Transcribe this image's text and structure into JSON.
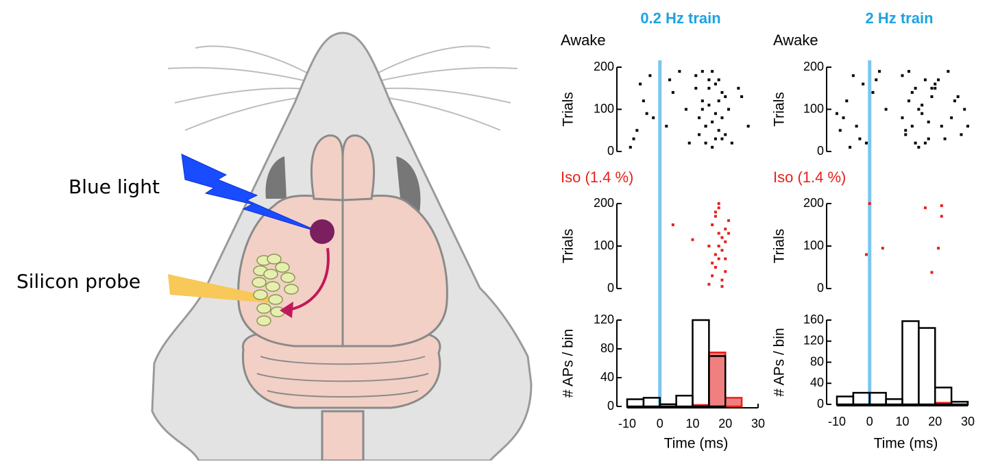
{
  "diagram": {
    "labels": [
      "Blue light",
      "Silicon probe"
    ]
  },
  "chart_data": [
    {
      "type": "scatter",
      "title": "0.2 Hz train",
      "subtitle": "Awake",
      "subtitle_color": "#000000",
      "ylabel": "Trials",
      "color": "#000000",
      "vline": {
        "value": 0,
        "color": "#7cc6ee"
      },
      "xlim": [
        -10,
        30
      ],
      "ylim": [
        0,
        200
      ],
      "yticks": [
        0,
        100,
        200
      ],
      "x": [
        -7,
        -5,
        -3,
        -8,
        -2,
        -6,
        -9,
        2,
        4,
        6,
        8,
        9,
        3,
        -4,
        11,
        12,
        13,
        14,
        15,
        16,
        17,
        18,
        19,
        20,
        12,
        13,
        14,
        15,
        16,
        17,
        18,
        19,
        21,
        22,
        11,
        14,
        16,
        18,
        20,
        13,
        15,
        17,
        19,
        25,
        27,
        24
      ],
      "values": [
        50,
        120,
        180,
        30,
        80,
        160,
        10,
        60,
        140,
        190,
        100,
        20,
        170,
        90,
        180,
        40,
        120,
        60,
        150,
        10,
        90,
        170,
        30,
        130,
        80,
        190,
        20,
        110,
        70,
        160,
        50,
        140,
        100,
        20,
        150,
        60,
        190,
        120,
        40,
        100,
        170,
        30,
        80,
        130,
        60,
        150
      ]
    },
    {
      "type": "scatter",
      "title": "2 Hz train",
      "subtitle": "Awake",
      "subtitle_color": "#000000",
      "ylabel": "Trials",
      "color": "#000000",
      "vline": {
        "value": 0,
        "color": "#7cc6ee"
      },
      "xlim": [
        -10,
        30
      ],
      "ylim": [
        0,
        200
      ],
      "yticks": [
        0,
        100,
        200
      ],
      "x": [
        -9,
        -7,
        -5,
        -3,
        -8,
        -2,
        -6,
        -4,
        1,
        3,
        5,
        -1,
        2,
        -10,
        10,
        11,
        12,
        13,
        14,
        15,
        16,
        17,
        18,
        19,
        10,
        12,
        14,
        16,
        18,
        20,
        11,
        13,
        15,
        17,
        20,
        22,
        24,
        26,
        28,
        29,
        21,
        23,
        25,
        27,
        30,
        19
      ],
      "values": [
        50,
        120,
        180,
        30,
        80,
        160,
        10,
        60,
        140,
        190,
        100,
        20,
        170,
        90,
        180,
        40,
        120,
        60,
        150,
        10,
        90,
        170,
        30,
        130,
        80,
        190,
        20,
        110,
        70,
        160,
        50,
        140,
        100,
        20,
        150,
        60,
        190,
        120,
        40,
        100,
        170,
        30,
        80,
        130,
        60,
        150
      ]
    },
    {
      "type": "scatter",
      "subtitle": "Iso (1.4 %)",
      "subtitle_color": "#e8201a",
      "ylabel": "Trials",
      "color": "#e8201a",
      "vline": {
        "value": 0,
        "color": "#7cc6ee"
      },
      "xlim": [
        -10,
        30
      ],
      "ylim": [
        0,
        200
      ],
      "yticks": [
        0,
        100,
        200
      ],
      "x": [
        4,
        10,
        15,
        16,
        17,
        18,
        19,
        20,
        21,
        16,
        17,
        18,
        19,
        20,
        16,
        17,
        18,
        19,
        20,
        21,
        17,
        18,
        19,
        15,
        20,
        18
      ],
      "values": [
        150,
        115,
        10,
        30,
        50,
        70,
        90,
        110,
        130,
        150,
        170,
        190,
        20,
        40,
        60,
        80,
        100,
        120,
        140,
        160,
        180,
        200,
        5,
        100,
        70,
        130
      ]
    },
    {
      "type": "scatter",
      "subtitle": "Iso (1.4 %)",
      "subtitle_color": "#e8201a",
      "ylabel": "Trials",
      "color": "#e8201a",
      "vline": {
        "value": 0,
        "color": "#7cc6ee"
      },
      "xlim": [
        -10,
        30
      ],
      "ylim": [
        0,
        200
      ],
      "yticks": [
        0,
        100,
        200
      ],
      "x": [
        0,
        -1,
        4,
        17,
        22,
        22,
        21,
        19
      ],
      "values": [
        200,
        80,
        95,
        190,
        195,
        170,
        95,
        38
      ]
    },
    {
      "type": "histogram",
      "xlabel": "Time (ms)",
      "ylabel": "# APs / bin",
      "vline": {
        "value": 0,
        "color": "#7cc6ee"
      },
      "xlim": [
        -10,
        30
      ],
      "ylim": [
        0,
        120
      ],
      "xticks": [
        -10,
        0,
        10,
        20,
        30
      ],
      "yticks": [
        0,
        40,
        80,
        120
      ],
      "bins": [
        -10,
        -5,
        0,
        5,
        10,
        15,
        20,
        25,
        30
      ],
      "series": [
        {
          "color": "#e8201a",
          "fill": "#f08080",
          "values": [
            0,
            0,
            0,
            0,
            2,
            75,
            12,
            0
          ]
        },
        {
          "color": "#000000",
          "fill": "none",
          "values": [
            10,
            12,
            3,
            15,
            120,
            70,
            0,
            0
          ]
        }
      ]
    },
    {
      "type": "histogram",
      "xlabel": "Time (ms)",
      "ylabel": "# APs / bin",
      "vline": {
        "value": 0,
        "color": "#7cc6ee"
      },
      "xlim": [
        -10,
        30
      ],
      "ylim": [
        0,
        160
      ],
      "xticks": [
        -10,
        0,
        10,
        20,
        30
      ],
      "yticks": [
        0,
        40,
        80,
        120,
        160
      ],
      "bins": [
        -10,
        -5,
        0,
        5,
        10,
        15,
        20,
        25,
        30
      ],
      "series": [
        {
          "color": "#e8201a",
          "fill": "#f08080",
          "values": [
            0,
            0,
            0,
            0,
            0,
            0,
            3,
            0
          ]
        },
        {
          "color": "#000000",
          "fill": "none",
          "values": [
            15,
            22,
            22,
            10,
            158,
            145,
            32,
            5
          ]
        }
      ]
    }
  ]
}
